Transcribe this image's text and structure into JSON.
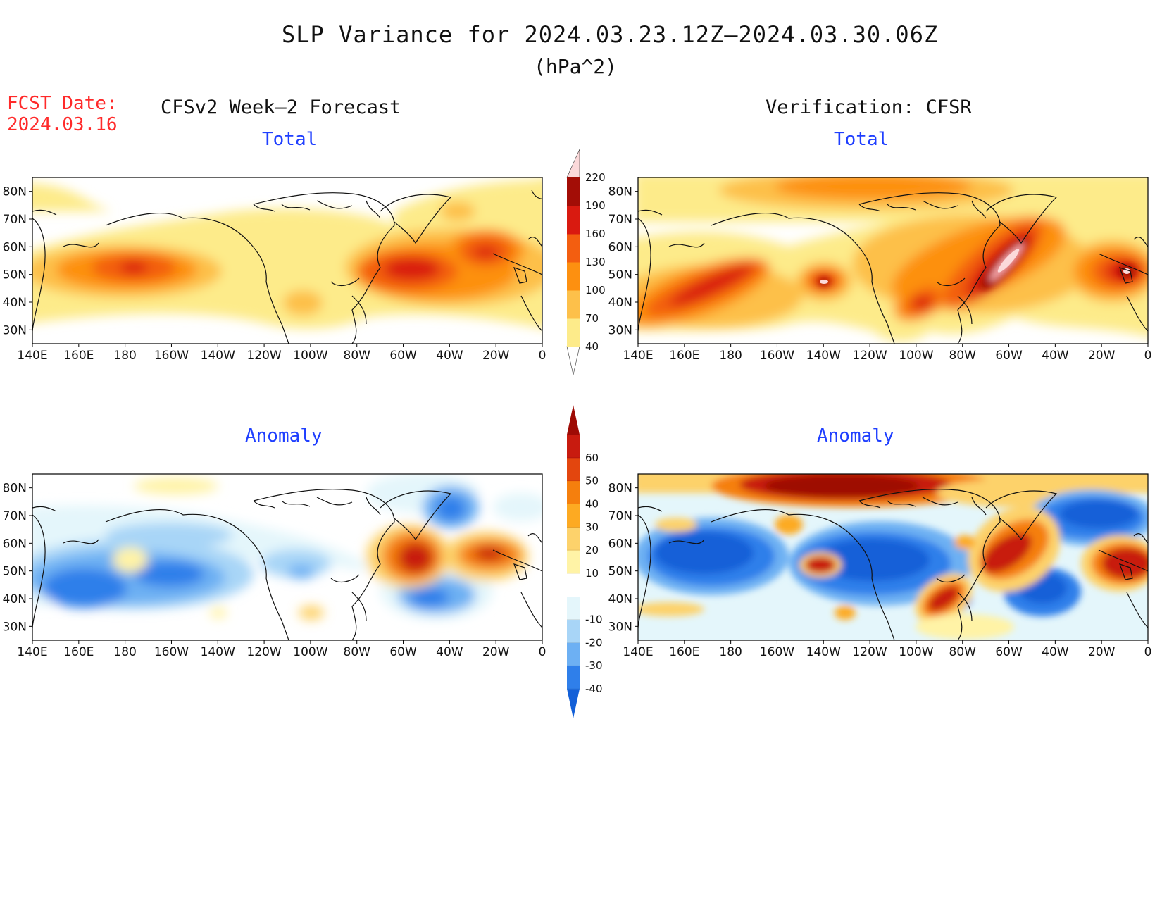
{
  "title": "SLP Variance for 2024.03.23.12Z–2024.03.30.06Z",
  "units": "(hPa^2)",
  "fcst_date_label": "FCST Date:",
  "fcst_date": "2024.03.16",
  "left_column_title": "CFSv2 Week–2 Forecast",
  "right_column_title": "Verification: CFSR",
  "panels": {
    "top_left": "Total",
    "top_right": "Total",
    "bottom_left": "Anomaly",
    "bottom_right": "Anomaly"
  },
  "map_axes": {
    "lat_labels": [
      "30N",
      "40N",
      "50N",
      "60N",
      "70N",
      "80N"
    ],
    "lon_labels": [
      "140E",
      "160E",
      "180",
      "160W",
      "140W",
      "120W",
      "100W",
      "80W",
      "60W",
      "40W",
      "20W",
      "0"
    ]
  },
  "colorbar_total": {
    "labels": [
      "40",
      "70",
      "100",
      "130",
      "160",
      "190",
      "220"
    ],
    "colors": [
      "#fdeb8a",
      "#fdc04a",
      "#fd9010",
      "#f35e10",
      "#d91a10",
      "#a30d06",
      "#f4a3a6",
      "#fbd9da"
    ]
  },
  "colorbar_anomaly": {
    "labels": [
      "-40",
      "-30",
      "-20",
      "-10",
      "10",
      "20",
      "30",
      "40",
      "50",
      "60"
    ],
    "colors": [
      "#1360d8",
      "#2f7fea",
      "#6db0f3",
      "#a8d5f7",
      "#e4f6fb",
      "#ffffff",
      "#fff3a6",
      "#fdd26b",
      "#fdaa22",
      "#f57f0d",
      "#e3460e",
      "#c81b0f",
      "#9e0b05"
    ]
  },
  "chart_data": [
    {
      "type": "heatmap",
      "panel": "CFSv2 Week-2 Forecast Total",
      "units": "hPa^2",
      "xlim": [
        "140E",
        "0"
      ],
      "ylim": [
        "25N",
        "85N"
      ],
      "grid": false,
      "features": [
        {
          "center": [
            "178E",
            "52N"
          ],
          "value": 130
        },
        {
          "center": [
            "55W",
            "50N"
          ],
          "value": 160
        },
        {
          "center": [
            "28W",
            "58N"
          ],
          "value": 130
        },
        {
          "center": [
            "105W",
            "40N"
          ],
          "value": 70
        }
      ]
    },
    {
      "type": "heatmap",
      "panel": "Verification CFSR Total",
      "units": "hPa^2",
      "xlim": [
        "140E",
        "0"
      ],
      "ylim": [
        "25N",
        "85N"
      ],
      "grid": false,
      "features": [
        {
          "center": [
            "65W",
            "50N"
          ],
          "value": 220
        },
        {
          "center": [
            "10W",
            "50N"
          ],
          "value": 190
        },
        {
          "center": [
            "135W",
            "48N"
          ],
          "value": 190
        },
        {
          "center": [
            "170W",
            "45N"
          ],
          "value": 130
        },
        {
          "center": [
            "95W",
            "40N"
          ],
          "value": 130
        }
      ]
    },
    {
      "type": "heatmap",
      "panel": "CFSv2 Week-2 Forecast Anomaly",
      "units": "hPa^2",
      "xlim": [
        "140E",
        "0"
      ],
      "ylim": [
        "25N",
        "85N"
      ],
      "grid": false,
      "features": [
        {
          "center": [
            "160E",
            "45N"
          ],
          "value": -40
        },
        {
          "center": [
            "25W",
            "58N"
          ],
          "value": 50
        },
        {
          "center": [
            "60W",
            "52N"
          ],
          "value": 50
        },
        {
          "center": [
            "45W",
            "42N"
          ],
          "value": -30
        },
        {
          "center": [
            "40W",
            "75N"
          ],
          "value": -30
        }
      ]
    },
    {
      "type": "heatmap",
      "panel": "Verification CFSR Anomaly",
      "units": "hPa^2",
      "xlim": [
        "140E",
        "0"
      ],
      "ylim": [
        "25N",
        "85N"
      ],
      "grid": false,
      "features": [
        {
          "center": [
            "150W",
            "80N"
          ],
          "value": 60
        },
        {
          "center": [
            "10W",
            "50N"
          ],
          "value": 60
        },
        {
          "center": [
            "95W",
            "40N"
          ],
          "value": 60
        },
        {
          "center": [
            "135W",
            "48N"
          ],
          "value": 60
        },
        {
          "center": [
            "160E",
            "55N"
          ],
          "value": -40
        },
        {
          "center": [
            "30W",
            "70N"
          ],
          "value": -40
        }
      ]
    }
  ]
}
